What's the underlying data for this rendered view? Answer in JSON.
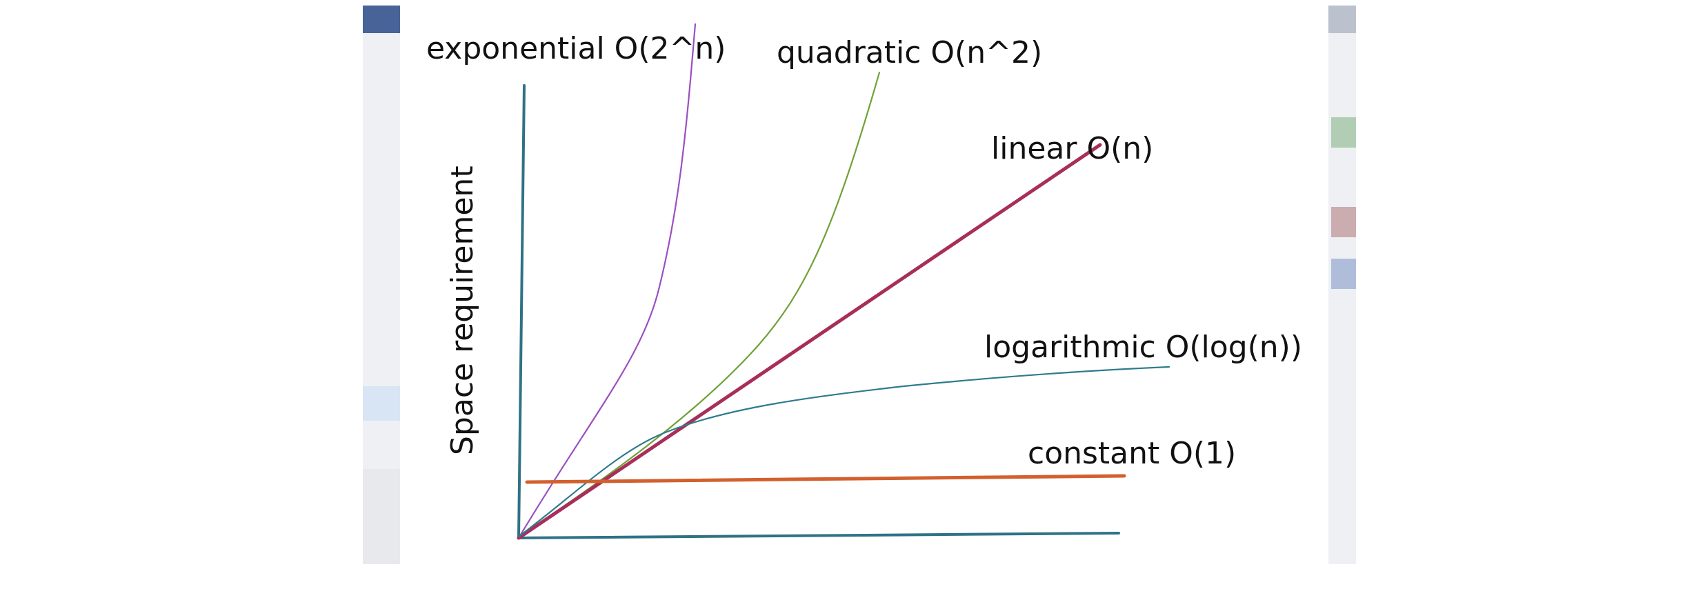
{
  "chart_data": {
    "type": "line",
    "title": "",
    "xlabel": "",
    "ylabel": "Space requirement",
    "grid": false,
    "legend": "labels next to curves",
    "series": [
      {
        "name": "exponential O(2^n)",
        "color": "#9b4fc0",
        "shape": "exponential"
      },
      {
        "name": "quadratic O(n^2)",
        "color": "#6fa136",
        "shape": "quadratic"
      },
      {
        "name": "linear O(n)",
        "color": "#a82e5a",
        "shape": "linear"
      },
      {
        "name": "logarithmic O(log(n))",
        "color": "#2e7b8e",
        "shape": "logarithmic"
      },
      {
        "name": "constant O(1)",
        "color": "#d2602e",
        "shape": "constant"
      }
    ],
    "axis_color": "#2f7285"
  }
}
